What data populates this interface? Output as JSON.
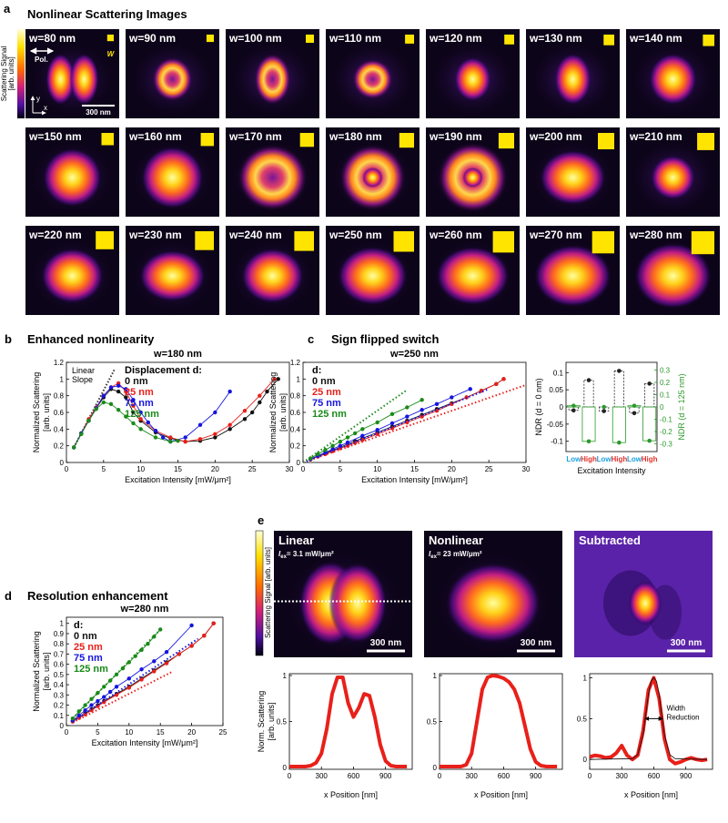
{
  "panel_a": {
    "label": "a",
    "title": "Nonlinear Scattering Images",
    "colorbar_label": [
      "Scattering Signal",
      "[arb. units]"
    ],
    "polarization": "Pol.",
    "axes": [
      "x",
      "y"
    ],
    "scale_bar": "300 nm",
    "size_symbol": "W",
    "images": [
      {
        "label": "w=80 nm",
        "w": 80
      },
      {
        "label": "w=90 nm",
        "w": 90
      },
      {
        "label": "w=100 nm",
        "w": 100
      },
      {
        "label": "w=110 nm",
        "w": 110
      },
      {
        "label": "w=120 nm",
        "w": 120
      },
      {
        "label": "w=130 nm",
        "w": 130
      },
      {
        "label": "w=140 nm",
        "w": 140
      },
      {
        "label": "w=150 nm",
        "w": 150
      },
      {
        "label": "w=160 nm",
        "w": 160
      },
      {
        "label": "w=170 nm",
        "w": 170
      },
      {
        "label": "w=180 nm",
        "w": 180
      },
      {
        "label": "w=190 nm",
        "w": 190
      },
      {
        "label": "w=200 nm",
        "w": 200
      },
      {
        "label": "w=210 nm",
        "w": 210
      },
      {
        "label": "w=220 nm",
        "w": 220
      },
      {
        "label": "w=230 nm",
        "w": 230
      },
      {
        "label": "w=240 nm",
        "w": 240
      },
      {
        "label": "w=250 nm",
        "w": 250
      },
      {
        "label": "w=260 nm",
        "w": 260
      },
      {
        "label": "w=270 nm",
        "w": 270
      },
      {
        "label": "w=280 nm",
        "w": 280
      }
    ]
  },
  "panel_e": {
    "label": "e",
    "colorbar_label": "Scattering Signal [arb. units]",
    "images": [
      {
        "title": "Linear",
        "intensity": {
          "symbol": "I",
          "sub": "ex",
          "text": "= 3.1 mW/μm²"
        },
        "scale_bar": "300 nm"
      },
      {
        "title": "Nonlinear",
        "intensity": {
          "symbol": "I",
          "sub": "ex",
          "text": "= 23 mW/μm²"
        },
        "scale_bar": "300 nm"
      },
      {
        "title": "Subtracted",
        "scale_bar": "300 nm"
      }
    ]
  },
  "chart_data": [
    {
      "type": "line",
      "panel": "b",
      "heading": "Enhanced nonlinearity",
      "title": "w=180 nm",
      "xlabel": "Excitation Intensity [mW/μm²]",
      "ylabel": [
        "Normalized Scattering",
        "[arb. units]"
      ],
      "xlim": [
        0,
        30
      ],
      "ylim": [
        0,
        1.2
      ],
      "xticks": [
        0,
        5,
        10,
        15,
        20,
        25,
        30
      ],
      "yticks": [
        0,
        0.2,
        0.4,
        0.6,
        0.8,
        1,
        1.2
      ],
      "legend": "upper center",
      "legend_title": "Displacement d:",
      "annotation": [
        "Linear",
        "Slope"
      ],
      "slope_line": {
        "color": "#333333",
        "x": [
          1,
          6.5
        ],
        "y": [
          0.18,
          1.12
        ]
      },
      "series": [
        {
          "name": "0 nm",
          "color": "#111111",
          "x": [
            1,
            2,
            3,
            4,
            5,
            6,
            7,
            8,
            9,
            10,
            12,
            14,
            16,
            18,
            20,
            22,
            24,
            25,
            26,
            27,
            28.5
          ],
          "y": [
            0.18,
            0.35,
            0.5,
            0.65,
            0.78,
            0.88,
            0.85,
            0.78,
            0.6,
            0.5,
            0.36,
            0.29,
            0.25,
            0.26,
            0.3,
            0.4,
            0.52,
            0.6,
            0.72,
            0.85,
            1.0
          ]
        },
        {
          "name": "25 nm",
          "color": "#e8201a",
          "x": [
            1,
            2,
            3,
            4,
            5,
            6,
            7,
            8,
            9,
            10,
            12,
            14,
            16,
            18,
            20,
            22,
            24,
            26,
            28
          ],
          "y": [
            0.18,
            0.35,
            0.52,
            0.66,
            0.8,
            0.9,
            0.95,
            0.85,
            0.68,
            0.52,
            0.38,
            0.3,
            0.25,
            0.28,
            0.34,
            0.45,
            0.62,
            0.8,
            1.0
          ]
        },
        {
          "name": "75 nm",
          "color": "#1515e0",
          "x": [
            1,
            2,
            3,
            4,
            5,
            6,
            7,
            8,
            9,
            10,
            11,
            12,
            13,
            14,
            16,
            18,
            20,
            22
          ],
          "y": [
            0.18,
            0.35,
            0.5,
            0.65,
            0.8,
            0.9,
            0.92,
            0.88,
            0.75,
            0.6,
            0.48,
            0.38,
            0.3,
            0.25,
            0.3,
            0.45,
            0.6,
            0.85
          ]
        },
        {
          "name": "125 nm",
          "color": "#1a8a1a",
          "x": [
            1,
            2,
            3,
            4,
            5,
            6,
            7,
            8,
            9,
            10,
            12,
            14,
            15
          ],
          "y": [
            0.18,
            0.34,
            0.5,
            0.64,
            0.72,
            0.7,
            0.63,
            0.55,
            0.47,
            0.4,
            0.3,
            0.25,
            0.26
          ]
        }
      ]
    },
    {
      "type": "line",
      "panel": "c",
      "heading": "Sign flipped switch",
      "title": "w=250 nm",
      "xlabel": "Excitation Intensity [mW/μm²]",
      "ylabel": [
        "Normalized Scattering",
        "[arb. units]"
      ],
      "xlim": [
        0,
        30
      ],
      "ylim": [
        0,
        1.2
      ],
      "xticks": [
        0,
        5,
        10,
        15,
        20,
        25,
        30
      ],
      "yticks": [
        0,
        0.2,
        0.4,
        0.6,
        0.8,
        1,
        1.2
      ],
      "legend": "upper left",
      "legend_title": "d:",
      "series": [
        {
          "name": "0 nm",
          "color": "#111111",
          "x": [
            1,
            2,
            3,
            4,
            5,
            6,
            7,
            8,
            10,
            12,
            14,
            16,
            18,
            20,
            22,
            24,
            26,
            27
          ],
          "y": [
            0.04,
            0.075,
            0.11,
            0.145,
            0.18,
            0.22,
            0.255,
            0.29,
            0.36,
            0.43,
            0.5,
            0.57,
            0.64,
            0.71,
            0.78,
            0.86,
            0.94,
            1.0
          ]
        },
        {
          "name": "25 nm",
          "color": "#e8201a",
          "x": [
            1,
            2,
            3,
            4,
            5,
            6,
            7,
            8,
            10,
            12,
            14,
            16,
            18,
            20,
            22,
            24,
            26,
            27
          ],
          "y": [
            0.035,
            0.07,
            0.1,
            0.135,
            0.17,
            0.2,
            0.235,
            0.27,
            0.34,
            0.41,
            0.48,
            0.55,
            0.62,
            0.7,
            0.78,
            0.86,
            0.94,
            1.0
          ],
          "fit": {
            "x": [
              0,
              30
            ],
            "y": [
              0,
              0.93
            ]
          }
        },
        {
          "name": "75 nm",
          "color": "#1515e0",
          "x": [
            1,
            2,
            3,
            4,
            5,
            6,
            8,
            10,
            12,
            14,
            16,
            18,
            20,
            22.5
          ],
          "y": [
            0.04,
            0.08,
            0.12,
            0.16,
            0.2,
            0.24,
            0.32,
            0.39,
            0.47,
            0.55,
            0.63,
            0.7,
            0.78,
            0.88
          ],
          "fit": {
            "x": [
              0,
              25
            ],
            "y": [
              0,
              0.88
            ]
          }
        },
        {
          "name": "125 nm",
          "color": "#1a8a1a",
          "x": [
            1,
            2,
            3,
            4,
            5,
            6,
            7,
            8,
            10,
            12,
            14,
            16
          ],
          "y": [
            0.05,
            0.1,
            0.15,
            0.2,
            0.25,
            0.3,
            0.35,
            0.4,
            0.48,
            0.58,
            0.66,
            0.75
          ],
          "fit": {
            "x": [
              0,
              14
            ],
            "y": [
              0,
              0.87
            ]
          }
        }
      ]
    },
    {
      "type": "bar",
      "xlabel": "Excitation Intensity",
      "categories": [
        "Low",
        "High",
        "Low",
        "High",
        "Low",
        "High"
      ],
      "category_colors": [
        "#1ba1e2",
        "#e0322a",
        "#1ba1e2",
        "#e0322a",
        "#1ba1e2",
        "#e0322a"
      ],
      "ylim": [
        -0.13,
        0.13
      ],
      "yticks": [
        -0.1,
        -0.05,
        0,
        0.05,
        0.1
      ],
      "y2lim": [
        -0.363,
        0.363
      ],
      "y2ticks": [
        -0.3,
        -0.2,
        -0.1,
        0,
        0.1,
        0.2,
        0.3
      ],
      "ylabel": "NDR (d = 0 nm)",
      "y2label": "NDR (d = 125 nm)",
      "y2color": "#2a9a2a",
      "series": [
        {
          "color": "#222222",
          "style": "dashed",
          "values": [
            -0.01,
            0.078,
            -0.012,
            0.105,
            -0.018,
            0.068
          ]
        },
        {
          "color": "#2a9a2a",
          "style": "solid",
          "axis": "y2",
          "values": [
            0.01,
            -0.28,
            0.0,
            -0.29,
            0.01,
            -0.275
          ]
        }
      ]
    },
    {
      "type": "line",
      "panel": "d",
      "heading": "Resolution enhancement",
      "title": "w=280 nm",
      "xlabel": "Excitation Intensity [mW/μm²]",
      "ylabel": [
        "Normalized Scattering",
        "[arb. units]"
      ],
      "xlim": [
        0,
        25
      ],
      "ylim": [
        0,
        1.06
      ],
      "xticks": [
        0,
        5,
        10,
        15,
        20,
        25
      ],
      "yticks": [
        0,
        0.1,
        0.2,
        0.3,
        0.4,
        0.5,
        0.6,
        0.7,
        0.8,
        0.9,
        1
      ],
      "legend": "upper left",
      "legend_title": "d:",
      "series": [
        {
          "name": "0 nm",
          "color": "#111111",
          "x": [
            1,
            2,
            3,
            4,
            5,
            6,
            8,
            10,
            12,
            14,
            16,
            18,
            20,
            22,
            23.5
          ],
          "y": [
            0.04,
            0.08,
            0.12,
            0.16,
            0.2,
            0.24,
            0.31,
            0.38,
            0.46,
            0.54,
            0.62,
            0.7,
            0.78,
            0.88,
            1.0
          ]
        },
        {
          "name": "25 nm",
          "color": "#e8201a",
          "x": [
            1,
            2,
            3,
            4,
            5,
            6,
            8,
            10,
            12,
            14,
            16,
            18,
            20,
            22,
            23.5
          ],
          "y": [
            0.04,
            0.075,
            0.11,
            0.15,
            0.19,
            0.23,
            0.3,
            0.37,
            0.45,
            0.53,
            0.61,
            0.7,
            0.78,
            0.88,
            1.0
          ],
          "fit": {
            "x": [
              1,
              17
            ],
            "y": [
              0.03,
              0.53
            ]
          }
        },
        {
          "name": "75 nm",
          "color": "#1515e0",
          "x": [
            1,
            2,
            3,
            4,
            5,
            6,
            7,
            8,
            10,
            12,
            14,
            16,
            20
          ],
          "y": [
            0.05,
            0.1,
            0.15,
            0.2,
            0.24,
            0.28,
            0.33,
            0.38,
            0.46,
            0.55,
            0.63,
            0.72,
            0.98
          ],
          "fit": {
            "x": [
              1,
              21
            ],
            "y": [
              0.04,
              0.85
            ]
          }
        },
        {
          "name": "125 nm",
          "color": "#1a8a1a",
          "x": [
            1,
            2,
            3,
            4,
            5,
            6,
            7,
            8,
            9,
            10,
            11,
            12,
            13,
            14,
            15
          ],
          "y": [
            0.07,
            0.14,
            0.2,
            0.26,
            0.32,
            0.38,
            0.44,
            0.5,
            0.56,
            0.62,
            0.68,
            0.74,
            0.8,
            0.87,
            0.94
          ],
          "fit": {
            "x": [
              1,
              15
            ],
            "y": [
              0.07,
              0.94
            ]
          }
        }
      ]
    },
    {
      "type": "line",
      "xlabel": "x Position [nm]",
      "ylabel": [
        "Norm. Scattering",
        "[arb. units]"
      ],
      "xlim": [
        0,
        1150
      ],
      "ylim": [
        -0.02,
        1.02
      ],
      "xticks": [
        0,
        300,
        600,
        900
      ],
      "yticks": [
        0,
        0.5,
        1
      ],
      "markers": false,
      "series": [
        {
          "color": "#e8201a",
          "x": [
            0,
            50,
            100,
            150,
            200,
            250,
            300,
            350,
            400,
            450,
            500,
            550,
            600,
            650,
            700,
            750,
            800,
            850,
            900,
            950,
            1000,
            1050,
            1100
          ],
          "y": [
            0.01,
            0.01,
            0.01,
            0.01,
            0.02,
            0.05,
            0.15,
            0.42,
            0.8,
            0.98,
            0.98,
            0.7,
            0.55,
            0.65,
            0.8,
            0.78,
            0.55,
            0.25,
            0.07,
            0.02,
            0.01,
            0.01,
            0.01
          ]
        }
      ]
    },
    {
      "type": "line",
      "xlabel": "x Position [nm]",
      "xlim": [
        0,
        1150
      ],
      "ylim": [
        -0.02,
        1.02
      ],
      "xticks": [
        0,
        300,
        600,
        900
      ],
      "yticks": [
        0,
        0.5,
        1
      ],
      "markers": false,
      "series": [
        {
          "color": "#e8201a",
          "x": [
            0,
            50,
            100,
            150,
            200,
            250,
            300,
            350,
            400,
            450,
            500,
            550,
            600,
            650,
            700,
            750,
            800,
            850,
            900,
            950,
            1000,
            1050,
            1100
          ],
          "y": [
            0.01,
            0.01,
            0.01,
            0.01,
            0.01,
            0.03,
            0.15,
            0.5,
            0.85,
            0.98,
            1.0,
            0.99,
            0.97,
            0.93,
            0.85,
            0.7,
            0.45,
            0.2,
            0.06,
            0.02,
            0.01,
            0.01,
            0.01
          ]
        }
      ]
    },
    {
      "type": "line",
      "xlabel": "x Position [nm]",
      "xlim": [
        0,
        1150
      ],
      "ylim": [
        -0.12,
        1.05
      ],
      "xticks": [
        0,
        300,
        600,
        900
      ],
      "yticks": [
        0,
        0.5,
        1
      ],
      "markers": false,
      "annotation": [
        "Width",
        "Reduction"
      ],
      "series": [
        {
          "color": "#e8201a",
          "x": [
            0,
            50,
            100,
            150,
            200,
            250,
            300,
            350,
            400,
            450,
            500,
            550,
            600,
            650,
            700,
            750,
            800,
            850,
            900,
            950,
            1000,
            1050,
            1100
          ],
          "y": [
            0.03,
            0.05,
            0.04,
            0.02,
            0.03,
            0.08,
            0.17,
            0.05,
            0.0,
            0.05,
            0.35,
            0.85,
            1.0,
            0.75,
            0.25,
            0.0,
            -0.05,
            -0.03,
            0.0,
            0.02,
            0.0,
            -0.01,
            0.0
          ]
        },
        {
          "color": "#111111",
          "x": [
            0,
            400,
            450,
            500,
            525,
            550,
            575,
            600,
            625,
            650,
            675,
            700,
            750,
            800,
            1100
          ],
          "y": [
            0,
            0.01,
            0.06,
            0.3,
            0.55,
            0.8,
            0.96,
            1.0,
            0.96,
            0.8,
            0.55,
            0.3,
            0.06,
            0.01,
            0
          ]
        }
      ]
    }
  ]
}
